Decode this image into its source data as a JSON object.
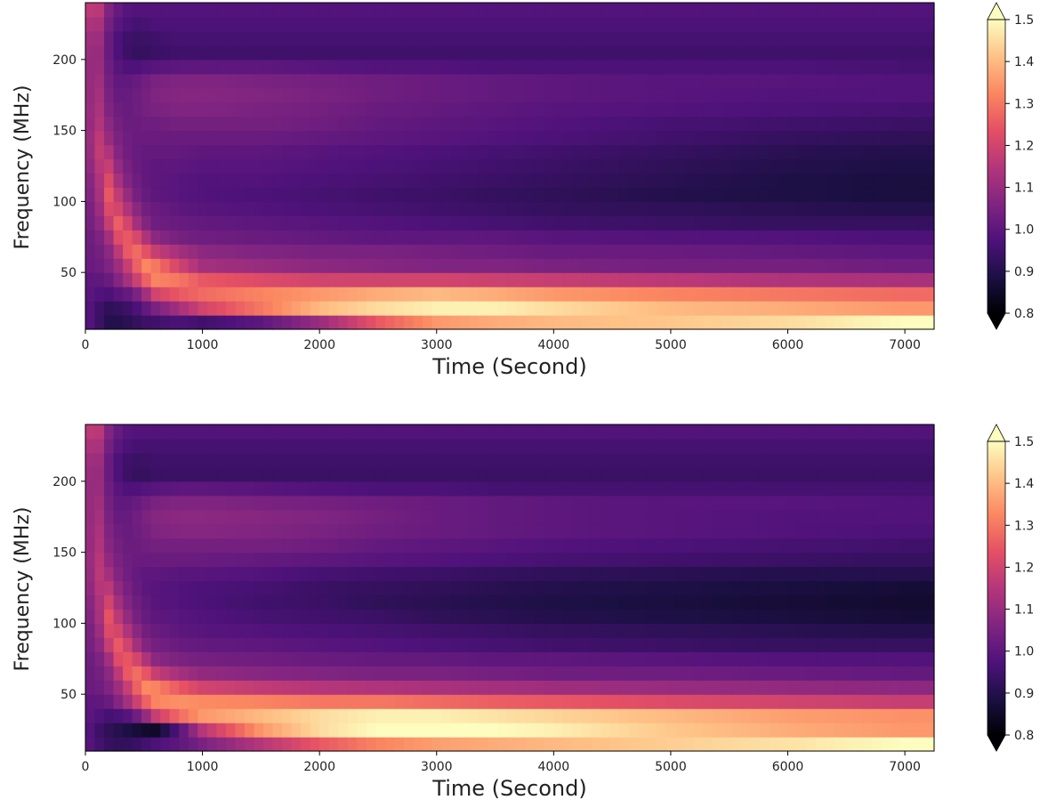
{
  "chart_data": [
    {
      "type": "heatmap",
      "title": "",
      "xlabel": "Time (Second)",
      "ylabel": "Frequency (MHz)",
      "xlim": [
        0,
        7250
      ],
      "ylim": [
        10,
        240
      ],
      "xticks": [
        0,
        1000,
        2000,
        3000,
        4000,
        5000,
        6000,
        7000
      ],
      "yticks": [
        50,
        100,
        150,
        200
      ],
      "grid": false,
      "colormap": "magma",
      "colorbar": {
        "min": 0.8,
        "max": 1.5,
        "extend": "both",
        "ticks": [
          0.8,
          0.9,
          1.0,
          1.1,
          1.2,
          1.3,
          1.4,
          1.5
        ]
      },
      "frequency_bands_mhz": [
        10,
        20,
        30,
        40,
        50,
        60,
        70,
        80,
        90,
        100,
        110,
        120,
        130,
        140,
        150,
        160,
        170,
        180,
        190,
        200,
        210,
        220,
        230,
        240
      ],
      "time_bins_s": [
        0,
        100,
        200,
        300,
        400,
        500,
        600,
        800,
        1000,
        1500,
        2000,
        2500,
        3000,
        3500,
        4000,
        5000,
        6000,
        7000,
        7250
      ],
      "values": [
        [
          1.0,
          0.95,
          0.9,
          0.9,
          0.92,
          0.94,
          0.95,
          0.97,
          0.95,
          1.0,
          1.1,
          1.25,
          1.35,
          1.38,
          1.4,
          1.42,
          1.45,
          1.5,
          1.5
        ],
        [
          1.0,
          0.95,
          0.92,
          0.93,
          0.95,
          1.0,
          1.05,
          1.12,
          1.2,
          1.3,
          1.4,
          1.45,
          1.48,
          1.48,
          1.45,
          1.4,
          1.38,
          1.35,
          1.35
        ],
        [
          1.0,
          0.98,
          0.97,
          1.0,
          1.02,
          1.1,
          1.2,
          1.25,
          1.28,
          1.32,
          1.35,
          1.38,
          1.4,
          1.38,
          1.35,
          1.32,
          1.3,
          1.28,
          1.28
        ],
        [
          1.0,
          1.0,
          1.02,
          1.08,
          1.15,
          1.25,
          1.32,
          1.3,
          1.25,
          1.22,
          1.2,
          1.2,
          1.2,
          1.19,
          1.18,
          1.16,
          1.14,
          1.13,
          1.13
        ],
        [
          1.02,
          1.02,
          1.06,
          1.12,
          1.22,
          1.33,
          1.3,
          1.2,
          1.12,
          1.1,
          1.08,
          1.07,
          1.06,
          1.06,
          1.05,
          1.04,
          1.04,
          1.03,
          1.03
        ],
        [
          1.02,
          1.03,
          1.08,
          1.18,
          1.3,
          1.25,
          1.18,
          1.12,
          1.08,
          1.06,
          1.05,
          1.05,
          1.04,
          1.03,
          1.02,
          1.02,
          1.01,
          1.0,
          1.0
        ],
        [
          1.02,
          1.04,
          1.12,
          1.25,
          1.25,
          1.15,
          1.08,
          1.04,
          1.03,
          1.02,
          1.01,
          1.0,
          1.0,
          1.0,
          0.99,
          0.98,
          0.98,
          0.97,
          0.97
        ],
        [
          1.03,
          1.06,
          1.18,
          1.28,
          1.15,
          1.07,
          1.03,
          1.02,
          1.01,
          1.0,
          0.99,
          0.98,
          0.97,
          0.96,
          0.95,
          0.94,
          0.93,
          0.93,
          0.93
        ],
        [
          1.03,
          1.08,
          1.22,
          1.2,
          1.1,
          1.04,
          1.02,
          1.0,
          0.99,
          0.98,
          0.97,
          0.96,
          0.95,
          0.94,
          0.93,
          0.92,
          0.91,
          0.9,
          0.9
        ],
        [
          1.04,
          1.1,
          1.25,
          1.15,
          1.06,
          1.02,
          1.0,
          0.99,
          0.98,
          0.97,
          0.96,
          0.95,
          0.94,
          0.93,
          0.92,
          0.9,
          0.89,
          0.88,
          0.88
        ],
        [
          1.04,
          1.12,
          1.22,
          1.1,
          1.04,
          1.01,
          1.0,
          0.99,
          0.98,
          0.98,
          0.97,
          0.96,
          0.95,
          0.94,
          0.93,
          0.91,
          0.89,
          0.88,
          0.88
        ],
        [
          1.05,
          1.15,
          1.18,
          1.07,
          1.03,
          1.01,
          1.0,
          1.0,
          0.99,
          0.99,
          0.98,
          0.97,
          0.96,
          0.95,
          0.94,
          0.92,
          0.9,
          0.89,
          0.89
        ],
        [
          1.05,
          1.18,
          1.14,
          1.05,
          1.02,
          1.01,
          1.01,
          1.01,
          1.0,
          1.0,
          0.99,
          0.98,
          0.97,
          0.96,
          0.95,
          0.93,
          0.91,
          0.9,
          0.9
        ],
        [
          1.06,
          1.18,
          1.1,
          1.04,
          1.02,
          1.02,
          1.02,
          1.02,
          1.02,
          1.02,
          1.01,
          1.0,
          0.99,
          0.98,
          0.97,
          0.95,
          0.93,
          0.92,
          0.92
        ],
        [
          1.06,
          1.16,
          1.08,
          1.03,
          1.02,
          1.03,
          1.03,
          1.04,
          1.04,
          1.04,
          1.03,
          1.01,
          1.0,
          0.99,
          0.98,
          0.96,
          0.95,
          0.94,
          0.94
        ],
        [
          1.07,
          1.15,
          1.06,
          1.02,
          1.02,
          1.04,
          1.05,
          1.06,
          1.06,
          1.05,
          1.04,
          1.02,
          1.01,
          1.0,
          0.99,
          0.98,
          0.97,
          0.96,
          0.96
        ],
        [
          1.07,
          1.14,
          1.05,
          1.01,
          1.02,
          1.04,
          1.06,
          1.07,
          1.07,
          1.06,
          1.05,
          1.03,
          1.02,
          1.01,
          1.0,
          0.99,
          0.98,
          0.98,
          0.98
        ],
        [
          1.08,
          1.13,
          1.04,
          1.0,
          1.01,
          1.03,
          1.05,
          1.06,
          1.06,
          1.05,
          1.04,
          1.03,
          1.02,
          1.01,
          1.0,
          0.99,
          0.99,
          0.98,
          0.98
        ],
        [
          1.08,
          1.12,
          1.03,
          0.98,
          0.97,
          0.98,
          0.99,
          1.0,
          1.0,
          1.0,
          0.99,
          0.98,
          0.98,
          0.97,
          0.97,
          0.97,
          0.97,
          0.96,
          0.96
        ],
        [
          1.09,
          1.12,
          1.02,
          0.96,
          0.93,
          0.93,
          0.94,
          0.95,
          0.95,
          0.95,
          0.95,
          0.95,
          0.95,
          0.95,
          0.95,
          0.95,
          0.95,
          0.95,
          0.95
        ],
        [
          1.1,
          1.13,
          1.02,
          0.96,
          0.94,
          0.94,
          0.95,
          0.96,
          0.96,
          0.96,
          0.96,
          0.96,
          0.96,
          0.96,
          0.96,
          0.96,
          0.96,
          0.96,
          0.96
        ],
        [
          1.12,
          1.15,
          1.04,
          0.98,
          0.96,
          0.96,
          0.97,
          0.97,
          0.97,
          0.97,
          0.97,
          0.97,
          0.97,
          0.97,
          0.97,
          0.97,
          0.97,
          0.97,
          0.97
        ],
        [
          1.15,
          1.18,
          1.06,
          1.0,
          0.98,
          0.98,
          0.98,
          0.98,
          0.98,
          0.98,
          0.98,
          0.98,
          0.98,
          0.98,
          0.98,
          0.98,
          0.98,
          0.98,
          0.98
        ]
      ]
    },
    {
      "type": "heatmap",
      "title": "",
      "xlabel": "Time (Second)",
      "ylabel": "Frequency (MHz)",
      "xlim": [
        0,
        7250
      ],
      "ylim": [
        10,
        240
      ],
      "xticks": [
        0,
        1000,
        2000,
        3000,
        4000,
        5000,
        6000,
        7000
      ],
      "yticks": [
        50,
        100,
        150,
        200
      ],
      "grid": false,
      "colormap": "magma",
      "colorbar": {
        "min": 0.8,
        "max": 1.5,
        "extend": "both",
        "ticks": [
          0.8,
          0.9,
          1.0,
          1.1,
          1.2,
          1.3,
          1.4,
          1.5
        ]
      },
      "frequency_bands_mhz": [
        10,
        20,
        30,
        40,
        50,
        60,
        70,
        80,
        90,
        100,
        110,
        120,
        130,
        140,
        150,
        160,
        170,
        180,
        190,
        200,
        210,
        220,
        230,
        240
      ],
      "time_bins_s": [
        0,
        100,
        200,
        300,
        400,
        500,
        600,
        800,
        1000,
        1500,
        2000,
        2500,
        3000,
        3500,
        4000,
        5000,
        6000,
        7000,
        7250
      ],
      "values": [
        [
          1.0,
          0.96,
          0.93,
          0.92,
          0.93,
          0.95,
          0.97,
          1.0,
          1.05,
          1.15,
          1.25,
          1.32,
          1.36,
          1.38,
          1.4,
          1.43,
          1.46,
          1.5,
          1.5
        ],
        [
          1.0,
          0.95,
          0.92,
          0.9,
          0.88,
          0.86,
          0.85,
          0.98,
          1.15,
          1.35,
          1.45,
          1.5,
          1.5,
          1.5,
          1.48,
          1.42,
          1.38,
          1.35,
          1.35
        ],
        [
          1.0,
          0.98,
          0.96,
          0.97,
          1.0,
          1.08,
          1.18,
          1.28,
          1.35,
          1.4,
          1.45,
          1.48,
          1.48,
          1.46,
          1.44,
          1.4,
          1.36,
          1.34,
          1.34
        ],
        [
          1.0,
          1.0,
          1.02,
          1.08,
          1.15,
          1.25,
          1.32,
          1.34,
          1.33,
          1.32,
          1.3,
          1.3,
          1.28,
          1.26,
          1.25,
          1.22,
          1.2,
          1.18,
          1.18
        ],
        [
          1.02,
          1.02,
          1.06,
          1.12,
          1.22,
          1.33,
          1.32,
          1.25,
          1.2,
          1.17,
          1.15,
          1.14,
          1.13,
          1.12,
          1.11,
          1.1,
          1.09,
          1.08,
          1.08
        ],
        [
          1.02,
          1.03,
          1.08,
          1.18,
          1.3,
          1.26,
          1.18,
          1.12,
          1.09,
          1.07,
          1.06,
          1.05,
          1.05,
          1.04,
          1.03,
          1.03,
          1.02,
          1.01,
          1.01
        ],
        [
          1.02,
          1.04,
          1.12,
          1.25,
          1.24,
          1.15,
          1.08,
          1.05,
          1.04,
          1.03,
          1.02,
          1.01,
          1.01,
          1.0,
          1.0,
          0.99,
          0.98,
          0.98,
          0.98
        ],
        [
          1.03,
          1.06,
          1.18,
          1.27,
          1.15,
          1.07,
          1.04,
          1.02,
          1.01,
          1.0,
          0.99,
          0.98,
          0.97,
          0.96,
          0.95,
          0.94,
          0.93,
          0.93,
          0.93
        ],
        [
          1.03,
          1.08,
          1.22,
          1.2,
          1.1,
          1.04,
          1.02,
          1.0,
          0.99,
          0.98,
          0.97,
          0.96,
          0.95,
          0.94,
          0.93,
          0.92,
          0.91,
          0.9,
          0.9
        ],
        [
          1.04,
          1.1,
          1.24,
          1.14,
          1.06,
          1.02,
          1.0,
          0.99,
          0.98,
          0.96,
          0.95,
          0.94,
          0.92,
          0.91,
          0.9,
          0.89,
          0.88,
          0.87,
          0.87
        ],
        [
          1.04,
          1.12,
          1.2,
          1.1,
          1.04,
          1.01,
          0.99,
          0.98,
          0.97,
          0.95,
          0.94,
          0.92,
          0.91,
          0.9,
          0.89,
          0.88,
          0.87,
          0.86,
          0.86
        ],
        [
          1.05,
          1.15,
          1.16,
          1.07,
          1.03,
          1.0,
          0.99,
          0.98,
          0.97,
          0.96,
          0.94,
          0.93,
          0.92,
          0.91,
          0.9,
          0.89,
          0.88,
          0.87,
          0.87
        ],
        [
          1.05,
          1.17,
          1.12,
          1.05,
          1.02,
          1.0,
          1.0,
          0.99,
          0.99,
          0.98,
          0.96,
          0.95,
          0.94,
          0.93,
          0.92,
          0.91,
          0.9,
          0.9,
          0.9
        ],
        [
          1.06,
          1.17,
          1.09,
          1.04,
          1.02,
          1.02,
          1.02,
          1.02,
          1.02,
          1.01,
          1.0,
          0.99,
          0.98,
          0.97,
          0.96,
          0.95,
          0.94,
          0.93,
          0.93
        ],
        [
          1.06,
          1.16,
          1.07,
          1.03,
          1.02,
          1.03,
          1.04,
          1.04,
          1.04,
          1.04,
          1.03,
          1.01,
          1.0,
          0.99,
          0.98,
          0.97,
          0.96,
          0.95,
          0.95
        ],
        [
          1.07,
          1.15,
          1.06,
          1.02,
          1.02,
          1.04,
          1.06,
          1.07,
          1.07,
          1.06,
          1.05,
          1.03,
          1.02,
          1.01,
          1.0,
          0.99,
          0.98,
          0.97,
          0.97
        ],
        [
          1.07,
          1.14,
          1.05,
          1.01,
          1.02,
          1.05,
          1.07,
          1.08,
          1.08,
          1.07,
          1.06,
          1.04,
          1.02,
          1.01,
          1.0,
          0.99,
          0.98,
          0.98,
          0.98
        ],
        [
          1.08,
          1.13,
          1.04,
          1.0,
          1.01,
          1.03,
          1.05,
          1.06,
          1.06,
          1.05,
          1.04,
          1.03,
          1.02,
          1.01,
          1.0,
          0.99,
          0.99,
          0.98,
          0.98
        ],
        [
          1.08,
          1.12,
          1.03,
          0.98,
          0.97,
          0.98,
          0.99,
          1.0,
          1.0,
          0.99,
          0.98,
          0.97,
          0.97,
          0.96,
          0.96,
          0.96,
          0.96,
          0.96,
          0.96
        ],
        [
          1.09,
          1.12,
          1.02,
          0.96,
          0.93,
          0.93,
          0.94,
          0.94,
          0.94,
          0.94,
          0.94,
          0.94,
          0.94,
          0.94,
          0.94,
          0.94,
          0.94,
          0.94,
          0.94
        ],
        [
          1.1,
          1.13,
          1.02,
          0.96,
          0.94,
          0.94,
          0.95,
          0.95,
          0.95,
          0.95,
          0.95,
          0.95,
          0.95,
          0.95,
          0.95,
          0.95,
          0.95,
          0.95,
          0.95
        ],
        [
          1.12,
          1.15,
          1.04,
          0.98,
          0.96,
          0.96,
          0.96,
          0.96,
          0.96,
          0.96,
          0.96,
          0.96,
          0.96,
          0.96,
          0.96,
          0.96,
          0.96,
          0.96,
          0.96
        ],
        [
          1.15,
          1.18,
          1.06,
          1.0,
          0.98,
          0.98,
          0.98,
          0.98,
          0.98,
          0.98,
          0.98,
          0.98,
          0.98,
          0.98,
          0.98,
          0.98,
          0.98,
          0.98,
          0.98
        ]
      ]
    }
  ]
}
